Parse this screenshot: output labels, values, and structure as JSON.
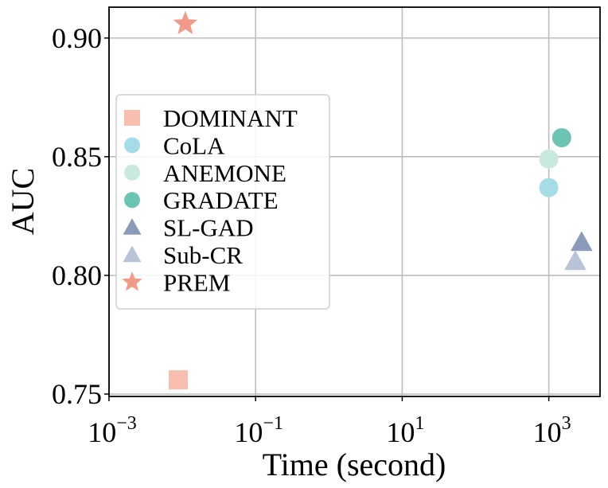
{
  "chart_data": {
    "type": "scatter",
    "title": "",
    "xlabel": "Time (second)",
    "ylabel": "AUC",
    "x_scale": "log",
    "x_ticks": [
      {
        "value": 0.001,
        "base": "10",
        "exp": "−3"
      },
      {
        "value": 0.1,
        "base": "10",
        "exp": "−1"
      },
      {
        "value": 10,
        "base": "10",
        "exp": "1"
      },
      {
        "value": 1000,
        "base": "10",
        "exp": "3"
      }
    ],
    "y_ticks": [
      {
        "value": 0.75,
        "label": "0.75"
      },
      {
        "value": 0.8,
        "label": "0.80"
      },
      {
        "value": 0.85,
        "label": "0.85"
      },
      {
        "value": 0.9,
        "label": "0.90"
      }
    ],
    "xlim": [
      0.001,
      5000
    ],
    "ylim": [
      0.749,
      0.913
    ],
    "grid": true,
    "legend_position": "center-left",
    "series": [
      {
        "name": "DOMINANT",
        "marker": "square",
        "color": "#f8bfae",
        "x": 0.0088,
        "y": 0.756
      },
      {
        "name": "CoLA",
        "marker": "circle",
        "color": "#a6dbe8",
        "x": 1000,
        "y": 0.837
      },
      {
        "name": "ANEMONE",
        "marker": "circle",
        "color": "#c9e9dc",
        "x": 1000,
        "y": 0.849
      },
      {
        "name": "GRADATE",
        "marker": "circle",
        "color": "#6cc4b4",
        "x": 1500,
        "y": 0.858
      },
      {
        "name": "SL-GAD",
        "marker": "triangle",
        "color": "#8d9bba",
        "x": 2800,
        "y": 0.814
      },
      {
        "name": "Sub-CR",
        "marker": "triangle",
        "color": "#b8c3d7",
        "x": 2300,
        "y": 0.806
      },
      {
        "name": "PREM",
        "marker": "star",
        "color": "#f29a88",
        "x": 0.011,
        "y": 0.906
      }
    ]
  }
}
